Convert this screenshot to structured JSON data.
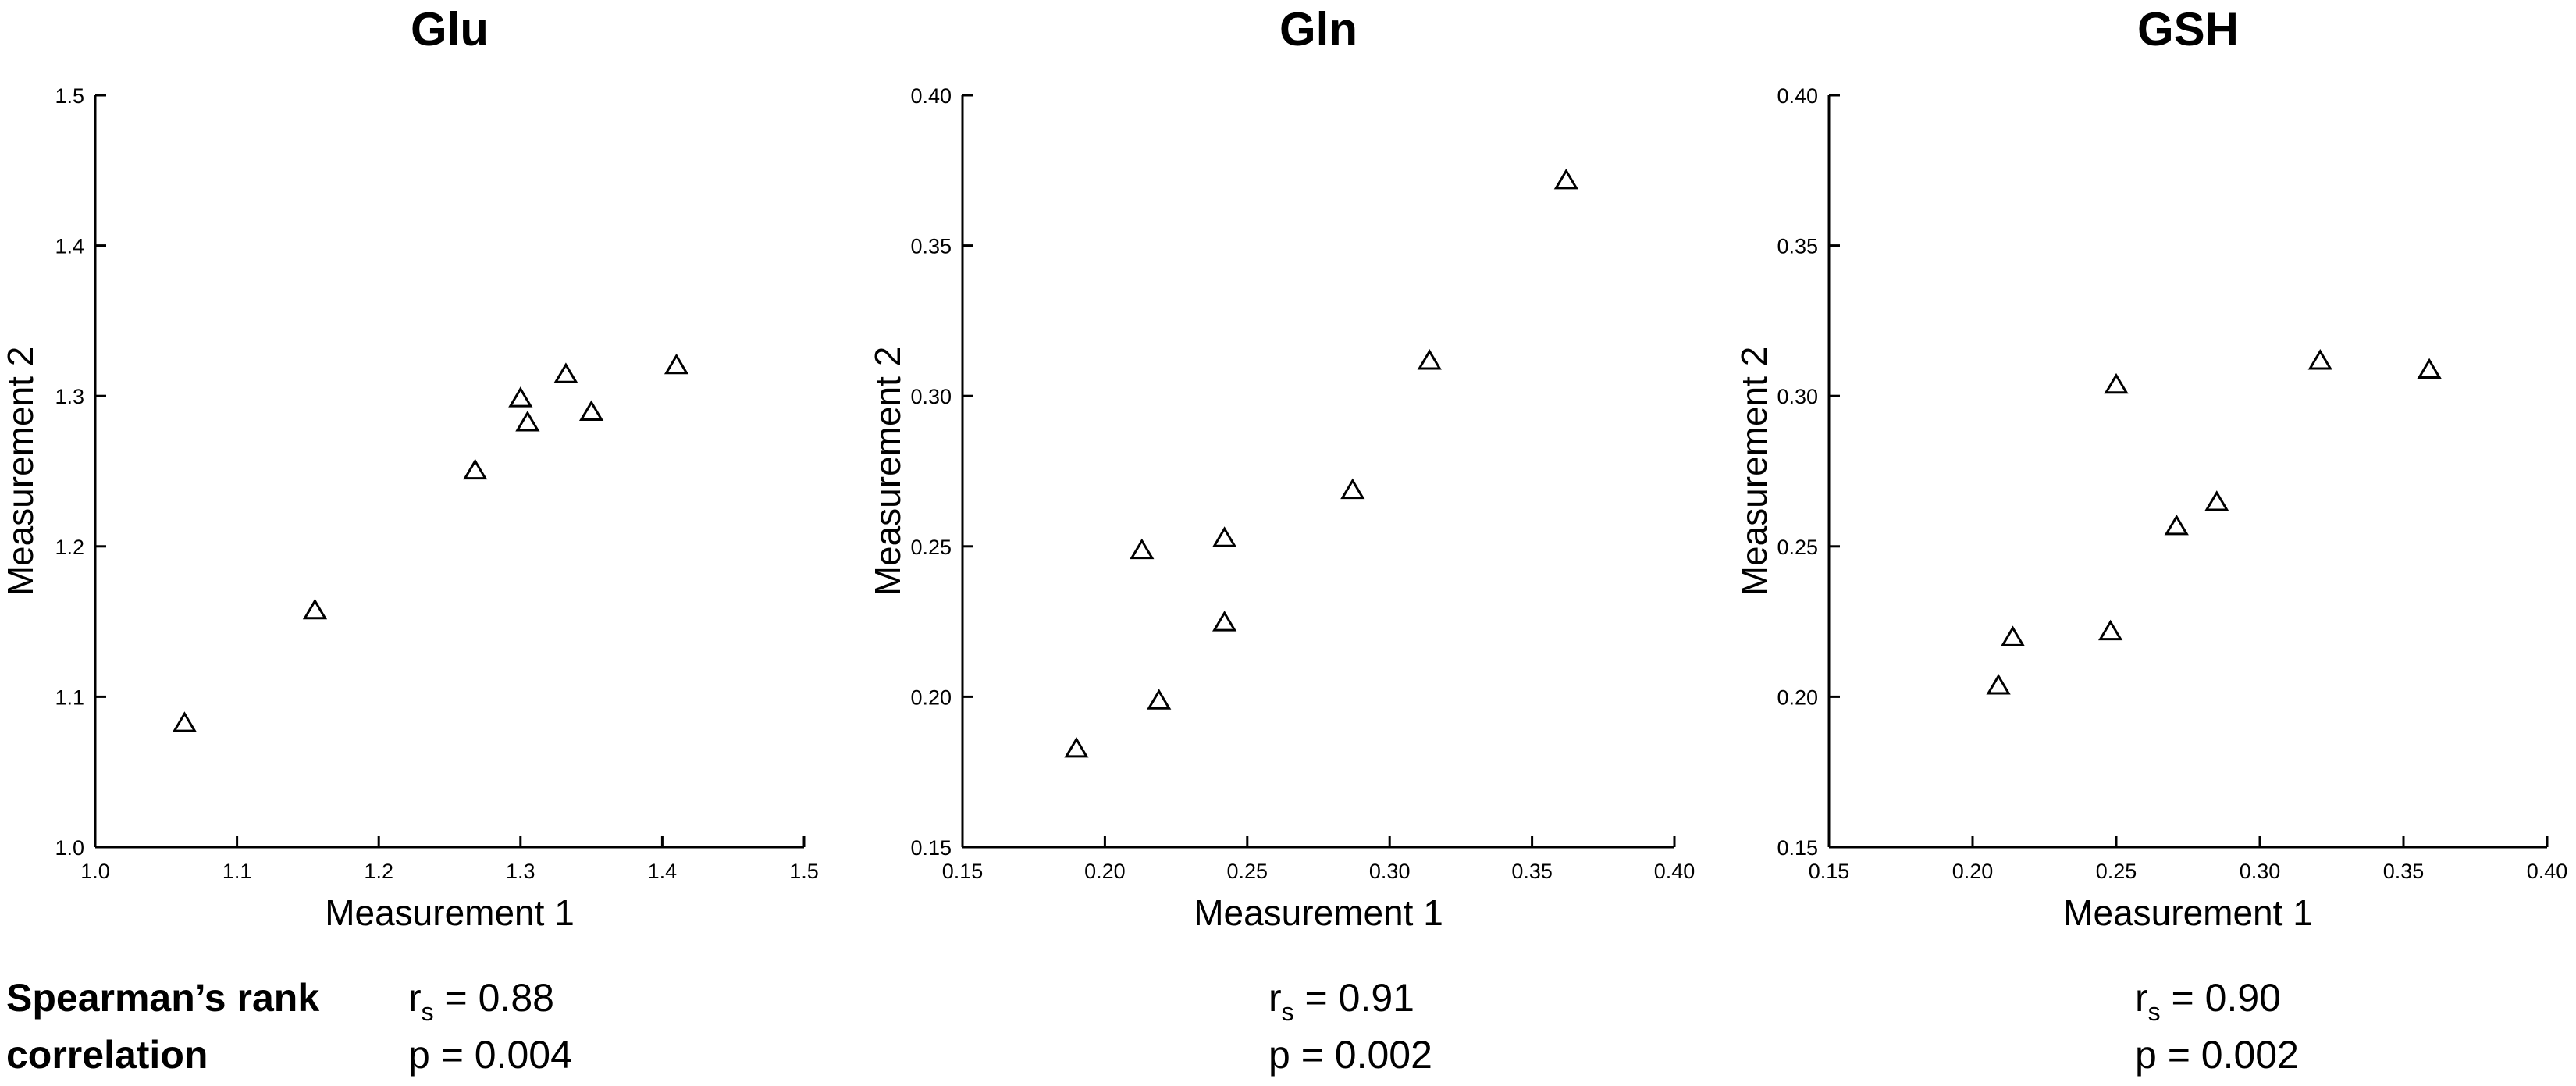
{
  "footer": {
    "label_line1": "Spearman’s rank",
    "label_line2": "correlation"
  },
  "chart_data": [
    {
      "type": "scatter",
      "title": "Glu",
      "xlabel": "Measurement 1",
      "ylabel": "Measurement 2",
      "xlim": [
        1.0,
        1.5
      ],
      "ylim": [
        1.0,
        1.5
      ],
      "xticks": [
        "1.0",
        "1.1",
        "1.2",
        "1.3",
        "1.4",
        "1.5"
      ],
      "yticks": [
        "1.0",
        "1.1",
        "1.2",
        "1.3",
        "1.4",
        "1.5"
      ],
      "grid": false,
      "marker": "open-triangle",
      "points": [
        {
          "x": 1.063,
          "y": 1.083
        },
        {
          "x": 1.155,
          "y": 1.158
        },
        {
          "x": 1.268,
          "y": 1.251
        },
        {
          "x": 1.3,
          "y": 1.299
        },
        {
          "x": 1.305,
          "y": 1.283
        },
        {
          "x": 1.332,
          "y": 1.315
        },
        {
          "x": 1.35,
          "y": 1.29
        },
        {
          "x": 1.41,
          "y": 1.321
        }
      ],
      "stats": {
        "r_symbol": "r",
        "r_subscript": "s",
        "r_text": "= 0.88",
        "p_text": "p = 0.004"
      }
    },
    {
      "type": "scatter",
      "title": "Gln",
      "xlabel": "Measurement 1",
      "ylabel": "Measurement 2",
      "xlim": [
        0.15,
        0.4
      ],
      "ylim": [
        0.15,
        0.4
      ],
      "xticks": [
        "0.15",
        "0.20",
        "0.25",
        "0.30",
        "0.35",
        "0.40"
      ],
      "yticks": [
        "0.15",
        "0.20",
        "0.25",
        "0.30",
        "0.35",
        "0.40"
      ],
      "grid": false,
      "marker": "open-triangle",
      "points": [
        {
          "x": 0.19,
          "y": 0.183
        },
        {
          "x": 0.213,
          "y": 0.249
        },
        {
          "x": 0.219,
          "y": 0.199
        },
        {
          "x": 0.242,
          "y": 0.253
        },
        {
          "x": 0.242,
          "y": 0.225
        },
        {
          "x": 0.287,
          "y": 0.269
        },
        {
          "x": 0.314,
          "y": 0.312
        },
        {
          "x": 0.362,
          "y": 0.372
        }
      ],
      "stats": {
        "r_symbol": "r",
        "r_subscript": "s",
        "r_text": "= 0.91",
        "p_text": "p = 0.002"
      }
    },
    {
      "type": "scatter",
      "title": "GSH",
      "xlabel": "Measurement 1",
      "ylabel": "Measurement 2",
      "xlim": [
        0.15,
        0.4
      ],
      "ylim": [
        0.15,
        0.4
      ],
      "xticks": [
        "0.15",
        "0.20",
        "0.25",
        "0.30",
        "0.35",
        "0.40"
      ],
      "yticks": [
        "0.15",
        "0.20",
        "0.25",
        "0.30",
        "0.35",
        "0.40"
      ],
      "grid": false,
      "marker": "open-triangle",
      "points": [
        {
          "x": 0.209,
          "y": 0.204
        },
        {
          "x": 0.214,
          "y": 0.22
        },
        {
          "x": 0.248,
          "y": 0.222
        },
        {
          "x": 0.25,
          "y": 0.304
        },
        {
          "x": 0.271,
          "y": 0.257
        },
        {
          "x": 0.285,
          "y": 0.265
        },
        {
          "x": 0.321,
          "y": 0.312
        },
        {
          "x": 0.359,
          "y": 0.309
        }
      ],
      "stats": {
        "r_symbol": "r",
        "r_subscript": "s",
        "r_text": "= 0.90",
        "p_text": "p = 0.002"
      }
    }
  ]
}
